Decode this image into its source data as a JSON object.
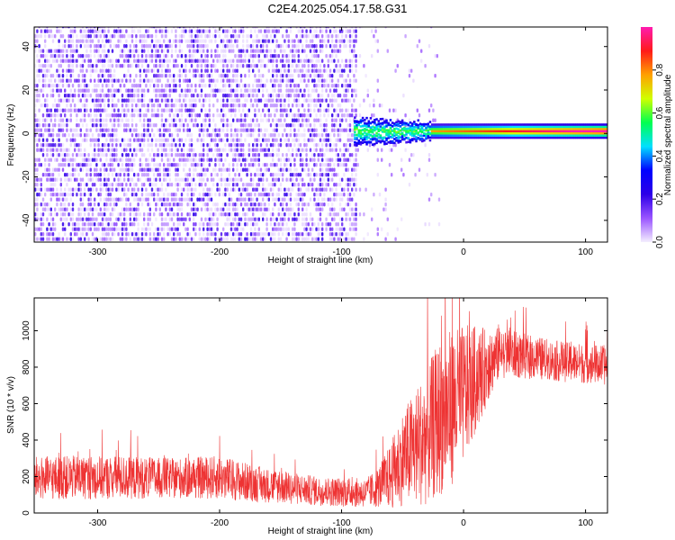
{
  "figure": {
    "title": "C2E4.2025.054.17.58.G31"
  },
  "chart_data": [
    {
      "type": "heatmap",
      "xlabel": "Height of straight line (km)",
      "ylabel": "Frequency (Hz)",
      "xlim": [
        -352,
        118
      ],
      "ylim": [
        -50,
        49
      ],
      "x_ticks": [
        "-300",
        "-200",
        "-100",
        "0",
        "100"
      ],
      "y_ticks": [
        "-40",
        "-20",
        "0",
        "20",
        "40"
      ],
      "x_tick_values": [
        -300,
        -200,
        -100,
        0,
        100
      ],
      "y_tick_values": [
        -40,
        -20,
        0,
        20,
        40
      ],
      "colorbar": {
        "label": "Normalized spectral amplitude",
        "range": [
          0,
          1
        ],
        "ticks": [
          "0.0",
          "0.2",
          "0.4",
          "0.6",
          "0.8"
        ],
        "tick_values": [
          0,
          0.2,
          0.4,
          0.6,
          0.8
        ],
        "colors": [
          "#f4eefe",
          "#9a55ff",
          "#2d00e8",
          "#0000ff",
          "#00e0ff",
          "#00ff50",
          "#d0ff00",
          "#ffa000",
          "#ff1a1a",
          "#ff1bb0"
        ]
      },
      "features": {
        "noise_region_x": [
          -352,
          -88
        ],
        "sparse_noise_x": [
          -88,
          -20
        ],
        "signal_start_x": -90,
        "signal_end_x": 118,
        "signal_frequency_hz": 1,
        "low_band_color": "#9a55ff"
      }
    },
    {
      "type": "line",
      "xlabel": "Height of straight line (km)",
      "ylabel": "SNR (10 * v/v)",
      "xlim": [
        -352,
        118
      ],
      "ylim": [
        0,
        1180
      ],
      "x_ticks": [
        "-300",
        "-200",
        "-100",
        "0",
        "100"
      ],
      "y_ticks": [
        "0",
        "200",
        "400",
        "600",
        "800",
        "1000"
      ],
      "x_tick_values": [
        -300,
        -200,
        -100,
        0,
        100
      ],
      "y_tick_values": [
        0,
        200,
        400,
        600,
        800,
        1000
      ],
      "line_color": "#ee3333",
      "profile": {
        "x": [
          -352,
          -320,
          -280,
          -240,
          -200,
          -160,
          -120,
          -100,
          -80,
          -70,
          -60,
          -50,
          -40,
          -30,
          -20,
          -10,
          0,
          10,
          20,
          30,
          40,
          60,
          80,
          100,
          118
        ],
        "mean": [
          190,
          195,
          195,
          190,
          195,
          150,
          120,
          115,
          110,
          140,
          200,
          300,
          360,
          420,
          520,
          580,
          650,
          730,
          810,
          880,
          870,
          850,
          830,
          820,
          810
        ],
        "spread": [
          120,
          120,
          120,
          110,
          120,
          95,
          80,
          80,
          80,
          110,
          180,
          260,
          320,
          380,
          430,
          430,
          380,
          300,
          200,
          140,
          130,
          120,
          110,
          110,
          110
        ]
      }
    }
  ]
}
